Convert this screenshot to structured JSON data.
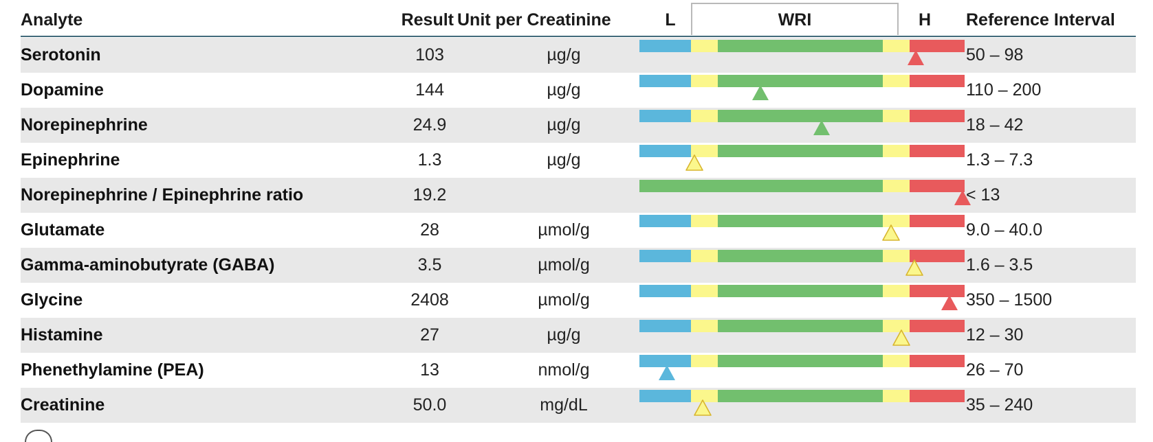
{
  "headers": {
    "analyte": "Analyte",
    "result": "Result",
    "unit": "Unit per Creatinine",
    "low": "L",
    "wri": "WRI",
    "high": "H",
    "reference": "Reference Interval"
  },
  "colors": {
    "low": "#5bb7dc",
    "borderline": "#fbf78c",
    "normal": "#72bf6e",
    "high": "#e85a5c",
    "row_shade": "#e8e8e8",
    "header_rule": "#41697a"
  },
  "rows": [
    {
      "name": "Serotonin",
      "result": "103",
      "unit": "µg/g",
      "reference": "50 – 98",
      "scale": "standard",
      "marker_position": 0.835,
      "marker_color": "red",
      "marker_style": "filled"
    },
    {
      "name": "Dopamine",
      "result": "144",
      "unit": "µg/g",
      "reference": "110 – 200",
      "scale": "standard",
      "marker_position": 0.365,
      "marker_color": "green",
      "marker_style": "filled"
    },
    {
      "name": "Norepinephrine",
      "result": "24.9",
      "unit": "µg/g",
      "reference": "18 – 42",
      "scale": "standard",
      "marker_position": 0.55,
      "marker_color": "green",
      "marker_style": "filled"
    },
    {
      "name": "Epinephrine",
      "result": "1.3",
      "unit": "µg/g",
      "reference": "1.3 – 7.3",
      "scale": "standard",
      "marker_position": 0.167,
      "marker_color": "yellow",
      "marker_style": "outline"
    },
    {
      "name": "Norepinephrine / Epinephrine ratio",
      "result": "19.2",
      "unit": "",
      "reference": "< 13",
      "scale": "upper_only",
      "marker_position": 0.975,
      "marker_color": "red",
      "marker_style": "filled"
    },
    {
      "name": "Glutamate",
      "result": "28",
      "unit": "µmol/g",
      "reference": "9.0 – 40.0",
      "scale": "standard",
      "marker_position": 0.76,
      "marker_color": "yellow",
      "marker_style": "outline"
    },
    {
      "name": "Gamma-aminobutyrate (GABA)",
      "result": "3.5",
      "unit": "µmol/g",
      "reference": "1.6 – 3.5",
      "scale": "standard",
      "marker_position": 0.83,
      "marker_color": "yellow",
      "marker_style": "outline"
    },
    {
      "name": "Glycine",
      "result": "2408",
      "unit": "µmol/g",
      "reference": "350 – 1500",
      "scale": "standard",
      "marker_position": 0.935,
      "marker_color": "red",
      "marker_style": "filled"
    },
    {
      "name": "Histamine",
      "result": "27",
      "unit": "µg/g",
      "reference": "12 – 30",
      "scale": "standard",
      "marker_position": 0.79,
      "marker_color": "yellow",
      "marker_style": "outline"
    },
    {
      "name": "Phenethylamine (PEA)",
      "result": "13",
      "unit": "nmol/g",
      "reference": "26 – 70",
      "scale": "standard",
      "marker_position": 0.083,
      "marker_color": "blue",
      "marker_style": "filled"
    },
    {
      "name": "Creatinine",
      "result": "50.0",
      "unit": "mg/dL",
      "reference": "35 – 240",
      "scale": "standard",
      "marker_position": 0.19,
      "marker_color": "yellow",
      "marker_style": "outline"
    }
  ]
}
